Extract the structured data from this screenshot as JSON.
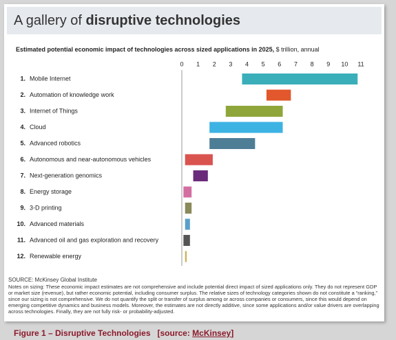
{
  "header": {
    "title_light": "A gallery of ",
    "title_bold": "disruptive technologies"
  },
  "chart_data": {
    "type": "range-bar",
    "title": "Estimated potential economic impact of technologies across sized applications in 2025,",
    "units": " $ trillion, annual",
    "ranks": [
      "1.",
      "2.",
      "3.",
      "4.",
      "5.",
      "6.",
      "7.",
      "8.",
      "9.",
      "10.",
      "11.",
      "12."
    ],
    "categories": [
      "Mobile Internet",
      "Automation of knowledge work",
      "Internet of Things",
      "Cloud",
      "Advanced robotics",
      "Autonomous and near-autonomous vehicles",
      "Next-generation genomics",
      "Energy storage",
      "3-D printing",
      "Advanced materials",
      "Advanced oil and gas exploration and recovery",
      "Renewable energy"
    ],
    "low": [
      3.7,
      5.2,
      2.7,
      1.7,
      1.7,
      0.2,
      0.7,
      0.1,
      0.2,
      0.2,
      0.1,
      0.2
    ],
    "high": [
      10.8,
      6.7,
      6.2,
      6.2,
      4.5,
      1.9,
      1.6,
      0.6,
      0.6,
      0.5,
      0.5,
      0.3
    ],
    "colors": [
      "#3aafb9",
      "#e2572b",
      "#8fa63a",
      "#3db3e3",
      "#4e7d96",
      "#d9534f",
      "#6a2c7a",
      "#d36fa0",
      "#8a8a5a",
      "#5aa0c8",
      "#555555",
      "#c9b458"
    ],
    "xlim": [
      0,
      11
    ],
    "xticks": [
      0,
      1,
      2,
      3,
      4,
      5,
      6,
      7,
      8,
      9,
      10,
      11
    ]
  },
  "source": "SOURCE: McKinsey Global Institute",
  "notes": "Notes on sizing: These economic impact estimates are not comprehensive and include potential direct impact of sized applications only. They do not represent GDP or market size (revenue), but rather economic potential, including consumer surplus. The relative sizes of technology categories shown do not constitute a “ranking,” since our sizing is not comprehensive. We do not quantify the split or transfer of surplus among or across companies or consumers, since this would depend on emerging competitive dynamics and business models. Moreover, the estimates are not directly additive, since some applications and/or value drivers are overlapping across technologies. Finally, they are not fully risk- or probability-adjusted.",
  "caption": {
    "text": "Figure 1 – Disruptive Technologies   [source: ",
    "link": "McKinsey",
    "end": "]"
  }
}
